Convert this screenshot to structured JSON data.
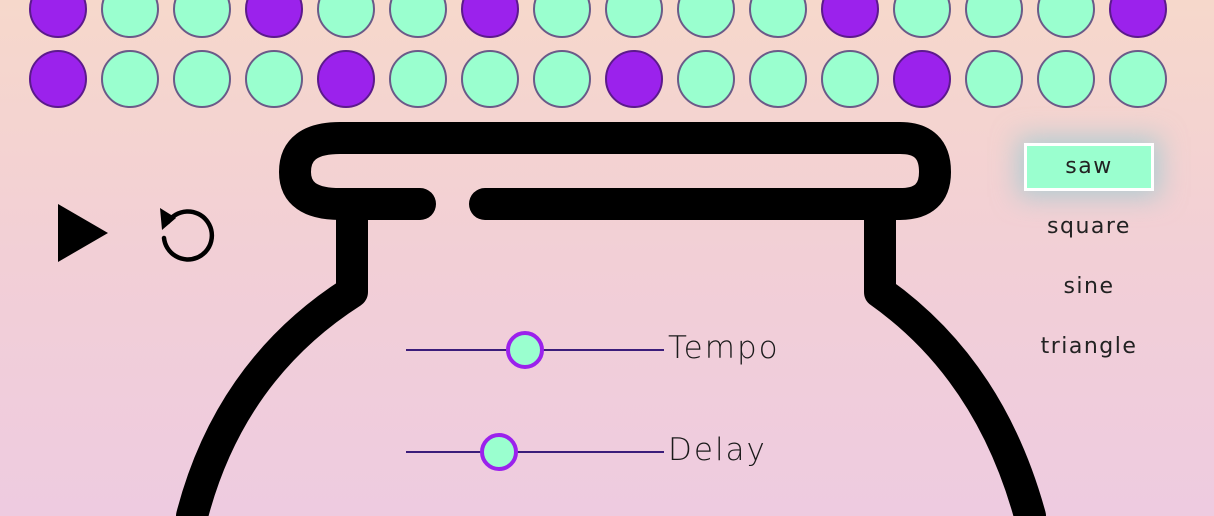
{
  "sequencer": {
    "rows": [
      [
        1,
        0,
        0,
        1,
        0,
        0,
        1,
        0,
        0,
        0,
        0,
        1,
        0,
        0,
        0,
        1
      ],
      [
        1,
        0,
        0,
        0,
        1,
        0,
        0,
        0,
        1,
        0,
        0,
        0,
        1,
        0,
        0,
        0
      ]
    ],
    "on_color": "#9b22ec",
    "off_color": "#9affcf"
  },
  "transport": {
    "play_icon": "play-icon",
    "reset_icon": "reset-icon"
  },
  "waveforms": {
    "options": [
      "saw",
      "square",
      "sine",
      "triangle"
    ],
    "selected": "saw"
  },
  "sliders": {
    "tempo": {
      "label": "Tempo",
      "value": 0.46
    },
    "delay": {
      "label": "Delay",
      "value": 0.36
    }
  },
  "colors": {
    "accent": "#9b22ec",
    "mint": "#9affcf",
    "track": "#3b1c7a"
  }
}
